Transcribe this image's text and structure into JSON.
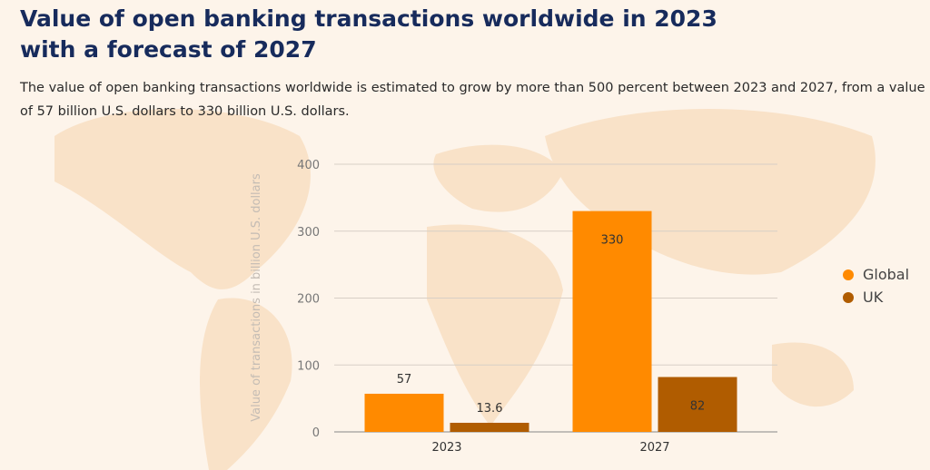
{
  "title": "Value of open banking transactions worldwide in 2023 with a forecast of 2027",
  "subtitle": "The value of open banking transactions worldwide is estimated to grow by more than 500 percent between 2023 and 2027, from a value of 57 billion U.S. dollars to 330 billion U.S. dollars.",
  "colors": {
    "background": "#fdf4ea",
    "map": "#f9e2c8",
    "title": "#172b5c",
    "global": "#ff8a00",
    "uk": "#b05c00"
  },
  "chart_data": {
    "type": "bar",
    "categories": [
      "2023",
      "2027"
    ],
    "series": [
      {
        "name": "Global",
        "values": [
          57,
          330
        ],
        "labels": [
          "57",
          "330"
        ]
      },
      {
        "name": "UK",
        "values": [
          13.6,
          82
        ],
        "labels": [
          "13.6",
          "82"
        ]
      }
    ],
    "ylabel": "Value of transactions in billion U.S. dollars",
    "xlabel": "",
    "ylim": [
      0,
      400
    ],
    "yticks": [
      "0",
      "100",
      "200",
      "300",
      "400"
    ],
    "grid": true,
    "legend_position": "right"
  }
}
